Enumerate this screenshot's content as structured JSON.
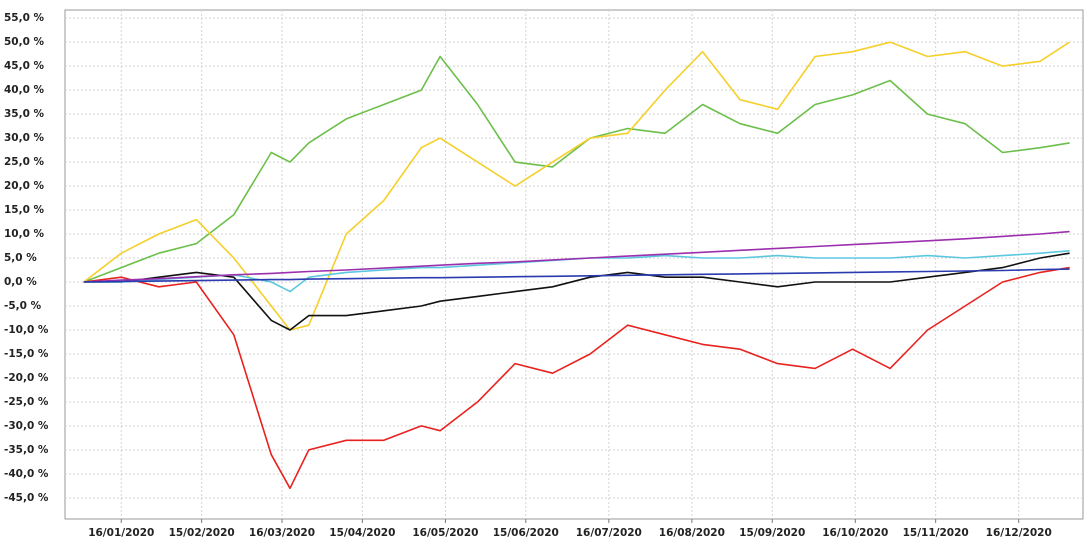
{
  "chart_data": {
    "type": "line",
    "x": [
      "2020-01-02",
      "2020-01-16",
      "2020-01-30",
      "2020-02-13",
      "2020-02-27",
      "2020-03-12",
      "2020-03-19",
      "2020-03-26",
      "2020-04-09",
      "2020-04-23",
      "2020-05-07",
      "2020-05-14",
      "2020-05-28",
      "2020-06-11",
      "2020-06-25",
      "2020-07-09",
      "2020-07-23",
      "2020-08-06",
      "2020-08-20",
      "2020-09-03",
      "2020-09-17",
      "2020-10-01",
      "2020-10-15",
      "2020-10-29",
      "2020-11-12",
      "2020-11-26",
      "2020-12-10",
      "2020-12-24",
      "2021-01-04"
    ],
    "series": [
      {
        "color": "#6cbf4a",
        "values": [
          0,
          3,
          6,
          8,
          14,
          27,
          25,
          29,
          34,
          37,
          40,
          47,
          37,
          25,
          24,
          30,
          32,
          31,
          37,
          33,
          31,
          37,
          39,
          42,
          35,
          33,
          27,
          28,
          29
        ]
      },
      {
        "color": "#f5cf2a",
        "values": [
          0,
          6,
          10,
          13,
          5,
          -5,
          -10,
          -9,
          10,
          17,
          28,
          30,
          25,
          20,
          25,
          30,
          31,
          40,
          48,
          38,
          36,
          47,
          48,
          50,
          47,
          48,
          45,
          46,
          50
        ]
      },
      {
        "color": "#e8221f",
        "values": [
          0,
          1,
          -1,
          0,
          -11,
          -36,
          -43,
          -35,
          -33,
          -33,
          -30,
          -31,
          -25,
          -17,
          -19,
          -15,
          -9,
          -11,
          -13,
          -14,
          -17,
          -18,
          -14,
          -18,
          -10,
          -5,
          0,
          2,
          3
        ]
      },
      {
        "color": "#111111",
        "values": [
          0,
          0,
          1,
          2,
          1,
          -8,
          -10,
          -7,
          -7,
          -6,
          -5,
          -4,
          -3,
          -2,
          -1,
          1,
          2,
          1,
          1,
          0,
          -1,
          0,
          0,
          0,
          1,
          2,
          3,
          5,
          6
        ]
      },
      {
        "color": "#5bc8e0",
        "values": [
          0,
          0,
          0.5,
          1,
          1.5,
          0,
          -2,
          1,
          2,
          2.5,
          3,
          3,
          3.5,
          4,
          4.5,
          5,
          5,
          5.5,
          5,
          5,
          5.5,
          5,
          5,
          5,
          5.5,
          5,
          5.5,
          6,
          6.5
        ]
      },
      {
        "color": "#9b2fae",
        "values": [
          0,
          0.4,
          0.7,
          1.1,
          1.5,
          1.8,
          2.0,
          2.2,
          2.5,
          2.9,
          3.3,
          3.5,
          3.9,
          4.2,
          4.6,
          5.0,
          5.4,
          5.8,
          6.2,
          6.6,
          7.0,
          7.4,
          7.8,
          8.2,
          8.6,
          9.0,
          9.5,
          10.0,
          10.5
        ]
      },
      {
        "color": "#2a3bb0",
        "values": [
          0,
          0.1,
          0.2,
          0.3,
          0.4,
          0.5,
          0.5,
          0.6,
          0.7,
          0.8,
          0.9,
          0.9,
          1.0,
          1.1,
          1.2,
          1.3,
          1.4,
          1.5,
          1.6,
          1.7,
          1.8,
          1.9,
          2.0,
          2.1,
          2.2,
          2.3,
          2.4,
          2.6,
          2.7
        ]
      }
    ],
    "xlim": [
      "2019-12-26",
      "2021-01-09"
    ],
    "xticks": [
      {
        "value": "2020-01-16",
        "label": "16/01/2020"
      },
      {
        "value": "2020-02-15",
        "label": "15/02/2020"
      },
      {
        "value": "2020-03-16",
        "label": "16/03/2020"
      },
      {
        "value": "2020-04-15",
        "label": "15/04/2020"
      },
      {
        "value": "2020-05-16",
        "label": "16/05/2020"
      },
      {
        "value": "2020-06-15",
        "label": "15/06/2020"
      },
      {
        "value": "2020-07-16",
        "label": "16/07/2020"
      },
      {
        "value": "2020-08-16",
        "label": "16/08/2020"
      },
      {
        "value": "2020-09-15",
        "label": "15/09/2020"
      },
      {
        "value": "2020-10-16",
        "label": "16/10/2020"
      },
      {
        "value": "2020-11-15",
        "label": "15/11/2020"
      },
      {
        "value": "2020-12-16",
        "label": "16/12/2020"
      }
    ],
    "ylim": [
      -49.4,
      56.7
    ],
    "yticks": [
      {
        "value": 55,
        "label": "55,0 %"
      },
      {
        "value": 50,
        "label": "50,0 %"
      },
      {
        "value": 45,
        "label": "45,0 %"
      },
      {
        "value": 40,
        "label": "40,0 %"
      },
      {
        "value": 35,
        "label": "35,0 %"
      },
      {
        "value": 30,
        "label": "30,0 %"
      },
      {
        "value": 25,
        "label": "25,0 %"
      },
      {
        "value": 20,
        "label": "20,0 %"
      },
      {
        "value": 15,
        "label": "15,0 %"
      },
      {
        "value": 10,
        "label": "10,0 %"
      },
      {
        "value": 5,
        "label": "5,0 %"
      },
      {
        "value": 0,
        "label": "0,0 %"
      },
      {
        "value": -5,
        "label": "-5,0 %"
      },
      {
        "value": -10,
        "label": "-10,0 %"
      },
      {
        "value": -15,
        "label": "-15,0 %"
      },
      {
        "value": -20,
        "label": "-20,0 %"
      },
      {
        "value": -25,
        "label": "-25,0 %"
      },
      {
        "value": -30,
        "label": "-30,0 %"
      },
      {
        "value": -35,
        "label": "-35,0 %"
      },
      {
        "value": -40,
        "label": "-40,0 %"
      },
      {
        "value": -45,
        "label": "-45,0 %"
      }
    ],
    "grid": true
  }
}
